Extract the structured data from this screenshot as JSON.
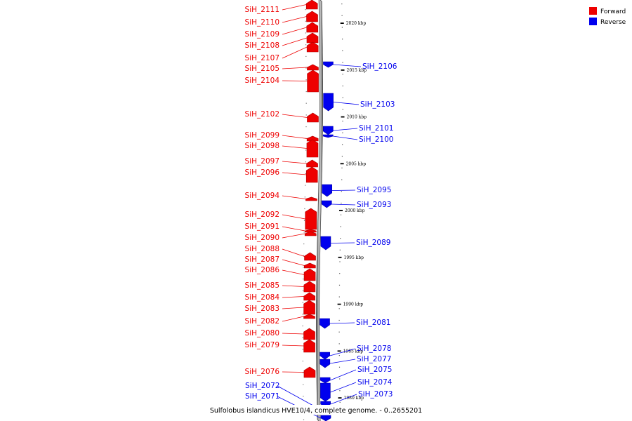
{
  "caption": "Sulfolobus islandicus HVE10/4, complete genome. - 0..2655201",
  "legend": [
    {
      "label": "Forward",
      "color": "#ee0000"
    },
    {
      "label": "Reverse",
      "color": "#0000ee"
    }
  ],
  "scale_ticks": [
    {
      "label": "2020 kbp",
      "kbp": 2020
    },
    {
      "label": "2015 kbp",
      "kbp": 2015
    },
    {
      "label": "2010 kbp",
      "kbp": 2010
    },
    {
      "label": "2005 kbp",
      "kbp": 2005
    },
    {
      "label": "2000 kbp",
      "kbp": 2000
    },
    {
      "label": "1995 kbp",
      "kbp": 1995
    },
    {
      "label": "1990 kbp",
      "kbp": 1990
    },
    {
      "label": "1985 kbp",
      "kbp": 1985
    },
    {
      "label": "1980 kbp",
      "kbp": 1980
    }
  ],
  "forward_genes": [
    {
      "name": "SiH_2111"
    },
    {
      "name": "SiH_2110"
    },
    {
      "name": "SiH_2109"
    },
    {
      "name": "SiH_2108"
    },
    {
      "name": "SiH_2107"
    },
    {
      "name": "SiH_2105"
    },
    {
      "name": "SiH_2104"
    },
    {
      "name": "SiH_2102"
    },
    {
      "name": "SiH_2099"
    },
    {
      "name": "SiH_2098"
    },
    {
      "name": "SiH_2097"
    },
    {
      "name": "SiH_2096"
    },
    {
      "name": "SiH_2094"
    },
    {
      "name": "SiH_2092"
    },
    {
      "name": "SiH_2091"
    },
    {
      "name": "SiH_2090"
    },
    {
      "name": "SiH_2088"
    },
    {
      "name": "SiH_2087"
    },
    {
      "name": "SiH_2086"
    },
    {
      "name": "SiH_2085"
    },
    {
      "name": "SiH_2084"
    },
    {
      "name": "SiH_2083"
    },
    {
      "name": "SiH_2082"
    },
    {
      "name": "SiH_2080"
    },
    {
      "name": "SiH_2079"
    },
    {
      "name": "SiH_2076"
    }
  ],
  "reverse_genes": [
    {
      "name": "SiH_2106"
    },
    {
      "name": "SiH_2103"
    },
    {
      "name": "SiH_2101"
    },
    {
      "name": "SiH_2100"
    },
    {
      "name": "SiH_2095"
    },
    {
      "name": "SiH_2093"
    },
    {
      "name": "SiH_2089"
    },
    {
      "name": "SiH_2081"
    },
    {
      "name": "SiH_2078"
    },
    {
      "name": "SiH_2077"
    },
    {
      "name": "SiH_2075"
    },
    {
      "name": "SiH_2074"
    },
    {
      "name": "SiH_2073"
    },
    {
      "name": "SiH_2072"
    },
    {
      "name": "SiH_2071"
    }
  ]
}
